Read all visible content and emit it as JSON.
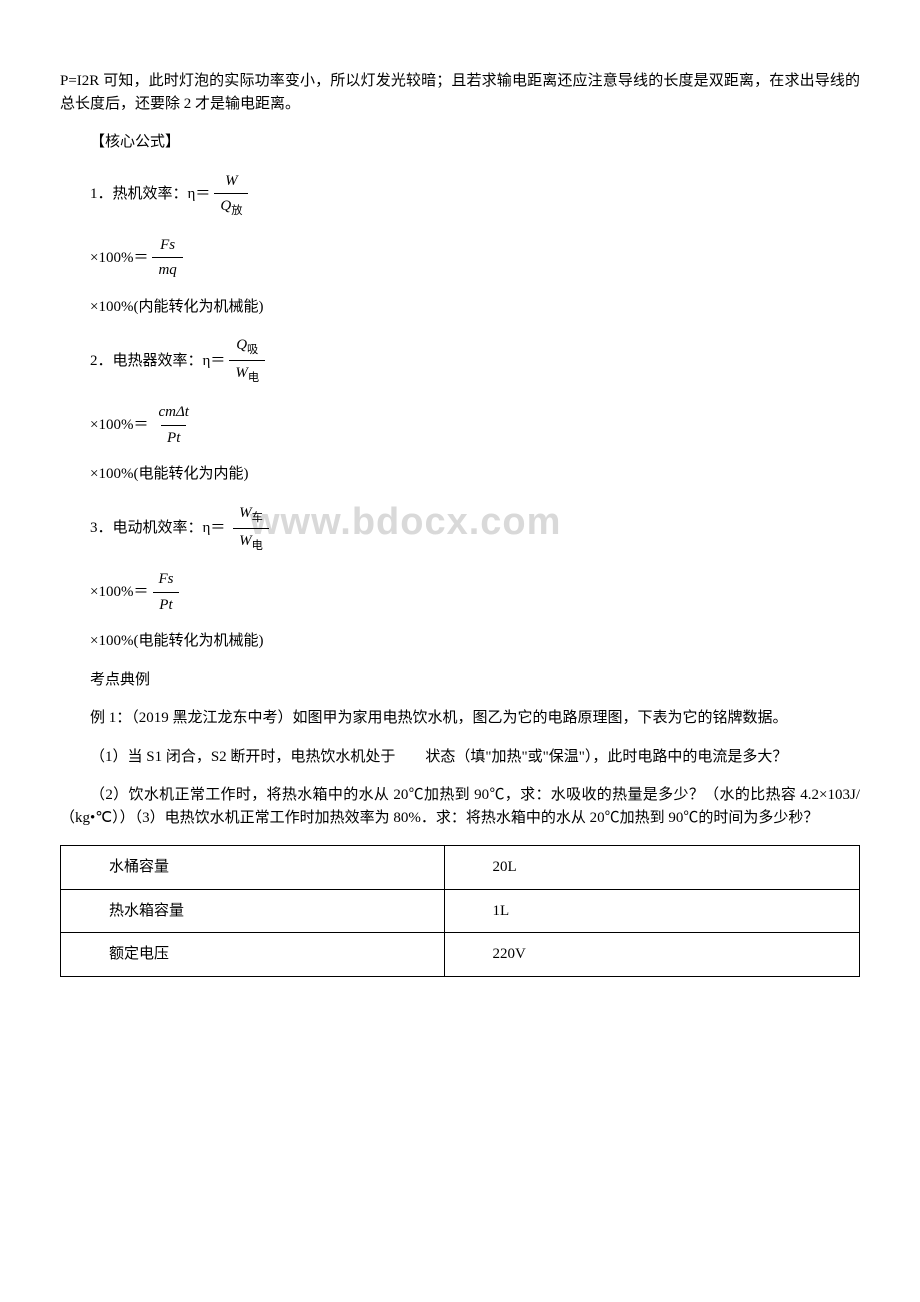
{
  "intro": {
    "p1": "P=I2R 可知，此时灯泡的实际功率变小，所以灯发光较暗；且若求输电距离还应注意导线的长度是双距离，在求出导线的总长度后，还要除 2 才是输电距离。"
  },
  "section_title": "【核心公式】",
  "formulas": {
    "f1": {
      "label": "1．热机效率：η＝",
      "num": "W",
      "den_var": "Q",
      "den_sub": "放",
      "line2_prefix": "×100%＝",
      "line2_num": "Fs",
      "line2_den": "mq",
      "note": "×100%(内能转化为机械能)"
    },
    "f2": {
      "label": "2．电热器效率：η＝",
      "num_var": "Q",
      "num_sub": "吸",
      "den_var": "W",
      "den_sub": "电",
      "line2_prefix": "×100%＝",
      "line2_num": "cmΔt",
      "line2_den": "Pt",
      "note": "×100%(电能转化为内能)"
    },
    "f3": {
      "label": "3．电动机效率：η＝",
      "num_var": "W",
      "num_sub": "车",
      "den_var": "W",
      "den_sub": "电",
      "line2_prefix": "×100%＝",
      "line2_num": "Fs",
      "line2_den": "Pt",
      "note": "×100%(电能转化为机械能)"
    }
  },
  "watermark_text": "www.bdocx.com",
  "examples_title": "考点典例",
  "example1": {
    "p1": "例 1：（2019 黑龙江龙东中考）如图甲为家用电热饮水机，图乙为它的电路原理图，下表为它的铭牌数据。",
    "p2": "（1）当 S1 闭合，S2 断开时，电热饮水机处于　　状态（填\"加热\"或\"保温\"），此时电路中的电流是多大？",
    "p3": "（2）饮水机正常工作时，将热水箱中的水从 20℃加热到 90℃，求：水吸收的热量是多少？（水的比热容 4.2×103J/（kg•℃））（3）电热饮水机正常工作时加热效率为 80%．求：将热水箱中的水从 20℃加热到 90℃的时间为多少秒？"
  },
  "table": {
    "rows": [
      {
        "k": "水桶容量",
        "v": "20L"
      },
      {
        "k": "热水箱容量",
        "v": "1L"
      },
      {
        "k": "额定电压",
        "v": "220V"
      }
    ]
  }
}
